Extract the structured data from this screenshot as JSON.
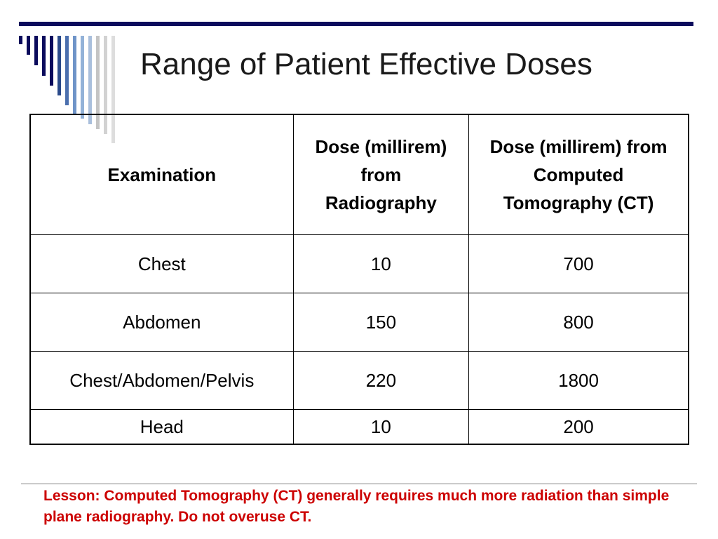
{
  "slide": {
    "title": "Range of Patient Effective Doses",
    "accent_color": "#0b0b5c",
    "lesson_color": "#cc0000",
    "lesson": "Lesson: Computed Tomography (CT) generally requires much more radiation than simple plane radiography. Do not overuse CT."
  },
  "table": {
    "headers": [
      "Examination",
      "Dose (millirem) from Radiography",
      "Dose (millirem) from Computed Tomography (CT)"
    ],
    "rows": [
      [
        "Chest",
        "10",
        "700"
      ],
      [
        "Abdomen",
        "150",
        "800"
      ],
      [
        "Chest/Abdomen/Pelvis",
        "220",
        "1800"
      ],
      [
        "Head",
        "10",
        "200"
      ]
    ]
  }
}
